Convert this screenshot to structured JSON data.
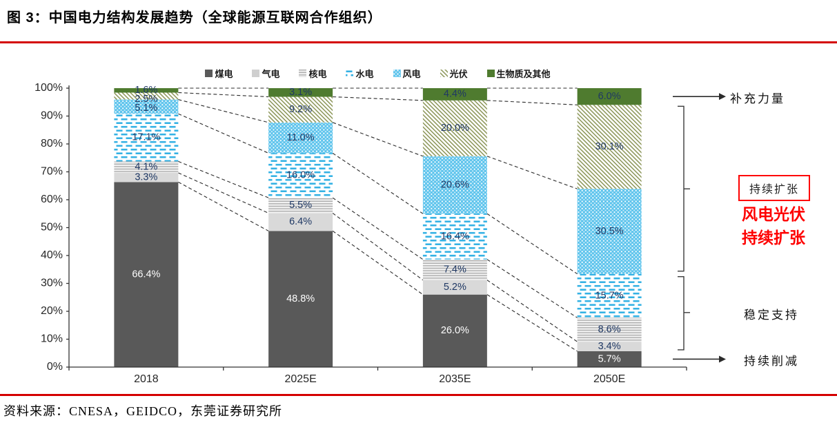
{
  "title": "图 3：中国电力结构发展趋势（全球能源互联网合作组织）",
  "source": "资料来源：CNESA，GEIDCO，东莞证券研究所",
  "annotations": {
    "supplement": "补充力量",
    "expand_box": "持续扩张",
    "expand_red_line1": "风电光伏",
    "expand_red_line2": "持续扩张",
    "stable": "稳定支持",
    "reduce": "持续削减"
  },
  "colors": {
    "accent_red": "#d40000",
    "annotation_red": "#fe0000",
    "label_dark": "#1f3864",
    "label_light": "#ffffff",
    "axis": "#333333",
    "coal": "#595959",
    "gas": "#d9d9d9",
    "gas_legend": "#cfcfcf",
    "nuclear_line": "#a9a9a9",
    "nuclear_bg": "#f1f1f1",
    "hydro_dash": "#35b2e4",
    "wind_bg": "#5cc3ec",
    "pv_line": "#8a9456",
    "biomass": "#4f7b2f"
  },
  "chart_data": {
    "type": "bar",
    "stacked": true,
    "grid": false,
    "legend_position": "top",
    "categories": [
      "2018",
      "2025E",
      "2035E",
      "2050E"
    ],
    "y_ticks": [
      "0%",
      "10%",
      "20%",
      "30%",
      "40%",
      "50%",
      "60%",
      "70%",
      "80%",
      "90%",
      "100%"
    ],
    "ylim": [
      0,
      100
    ],
    "value_suffix": "%",
    "series": [
      {
        "name": "煤电",
        "pattern": "coal",
        "values": [
          66.4,
          48.8,
          26.0,
          5.7
        ]
      },
      {
        "name": "气电",
        "pattern": "gas",
        "values": [
          3.3,
          6.4,
          5.2,
          3.4
        ]
      },
      {
        "name": "核电",
        "pattern": "nuclear",
        "values": [
          4.1,
          5.5,
          7.4,
          8.6
        ]
      },
      {
        "name": "水电",
        "pattern": "hydro",
        "values": [
          17.1,
          16.0,
          16.4,
          15.7
        ]
      },
      {
        "name": "风电",
        "pattern": "wind",
        "values": [
          5.1,
          11.0,
          20.6,
          30.5
        ]
      },
      {
        "name": "光伏",
        "pattern": "pv",
        "values": [
          2.5,
          9.2,
          20.0,
          30.1
        ]
      },
      {
        "name": "生物质及其他",
        "pattern": "biomass",
        "values": [
          1.6,
          3.1,
          4.4,
          6.0
        ]
      }
    ]
  }
}
